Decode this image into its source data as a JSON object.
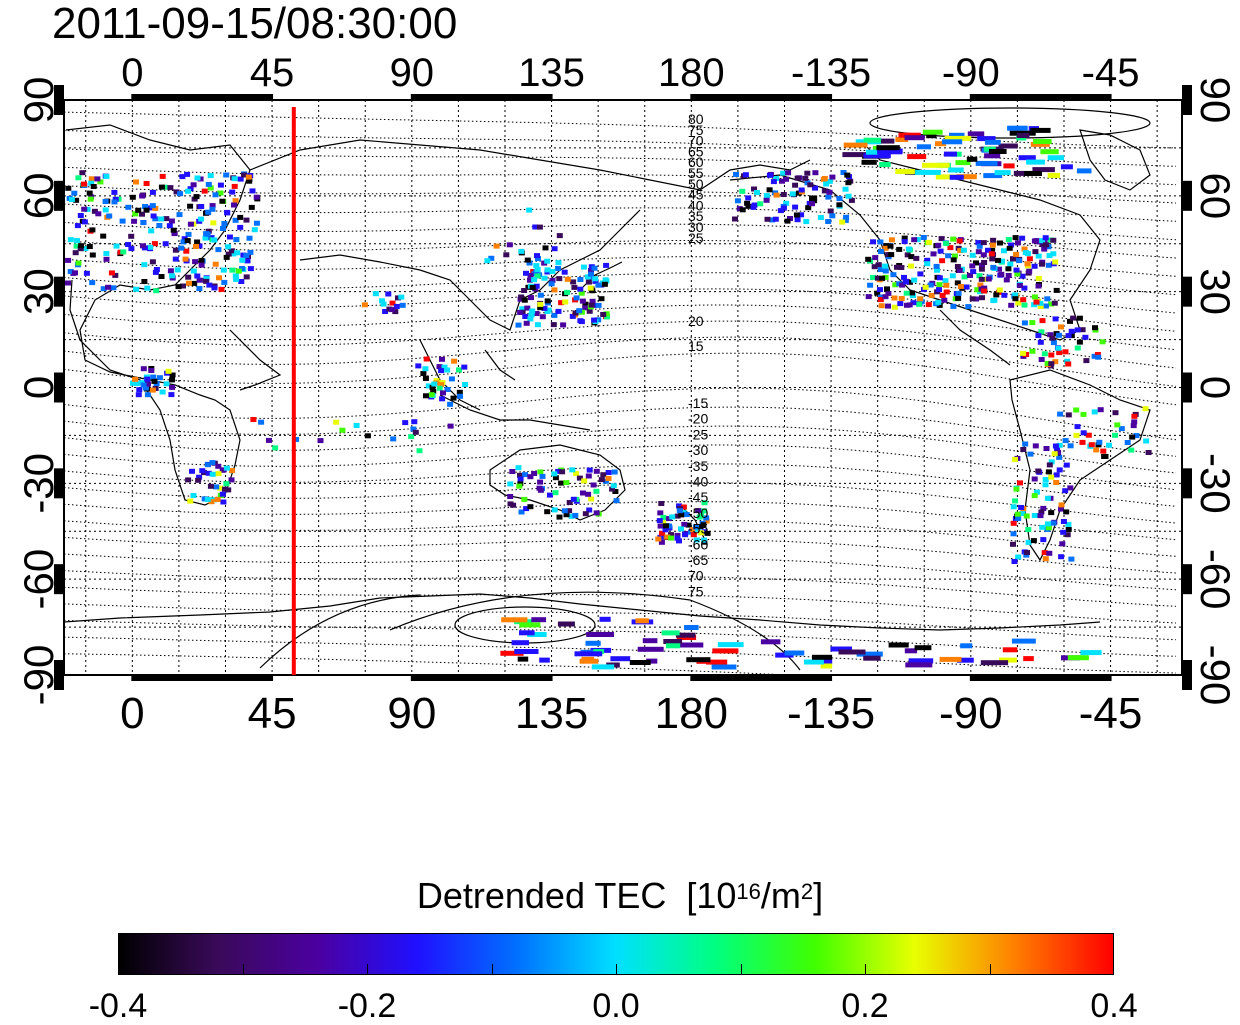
{
  "title": "2011-09-15/08:30:00",
  "map": {
    "lon_ticks_top": [
      "0",
      "45",
      "90",
      "135",
      "180",
      "-135",
      "-90",
      "-45"
    ],
    "lon_ticks_bottom": [
      "0",
      "45",
      "90",
      "135",
      "180",
      "-135",
      "-90",
      "-45"
    ],
    "lat_ticks_left": [
      "90",
      "60",
      "30",
      "0",
      "-30",
      "-60",
      "-90"
    ],
    "lat_ticks_right": [
      "90",
      "60",
      "30",
      "0",
      "-30",
      "-60",
      "-90"
    ],
    "contour_labels_north": [
      "80",
      "75",
      "70",
      "65",
      "60",
      "55",
      "50",
      "45",
      "40",
      "35",
      "30",
      "25",
      "20",
      "15"
    ],
    "contour_labels_south": [
      "-15",
      "-20",
      "-25",
      "-30",
      "-35",
      "-40",
      "-45",
      "-50",
      "-55",
      "-60",
      "-65",
      "70",
      "75"
    ],
    "marker_line_lon": 52,
    "marker_line_color": "#ff0000"
  },
  "colorbar": {
    "title_prefix": "Detrended TEC",
    "unit_open": "[10",
    "unit_exp1": "16",
    "unit_mid": "/m",
    "unit_exp2": "2",
    "unit_close": "]",
    "tick_labels": [
      "-0.4",
      "-0.2",
      "0.0",
      "0.2",
      "0.4"
    ],
    "min": -0.4,
    "max": 0.4,
    "colors": [
      "#000000",
      "#3a0a5a",
      "#4b00a0",
      "#2010ff",
      "#0070ff",
      "#00e0ff",
      "#00ff80",
      "#40ff00",
      "#e8ff00",
      "#ff8000",
      "#ff0000"
    ]
  }
}
